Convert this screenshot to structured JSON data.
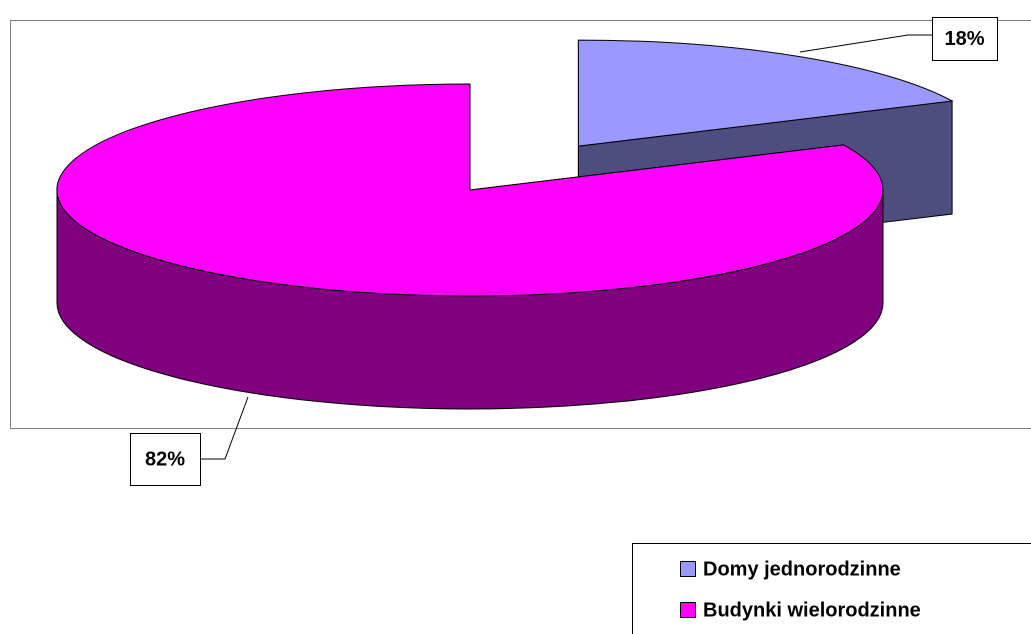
{
  "chart_data": {
    "type": "pie",
    "three_d": true,
    "categories": [
      "Domy jednorodzinne",
      "Budynki wielorodzinne"
    ],
    "values": [
      18,
      82
    ],
    "value_labels": [
      "18%",
      "82%"
    ],
    "colors": [
      "#9999ff",
      "#ff00ff"
    ],
    "legend": "bottom-right"
  }
}
